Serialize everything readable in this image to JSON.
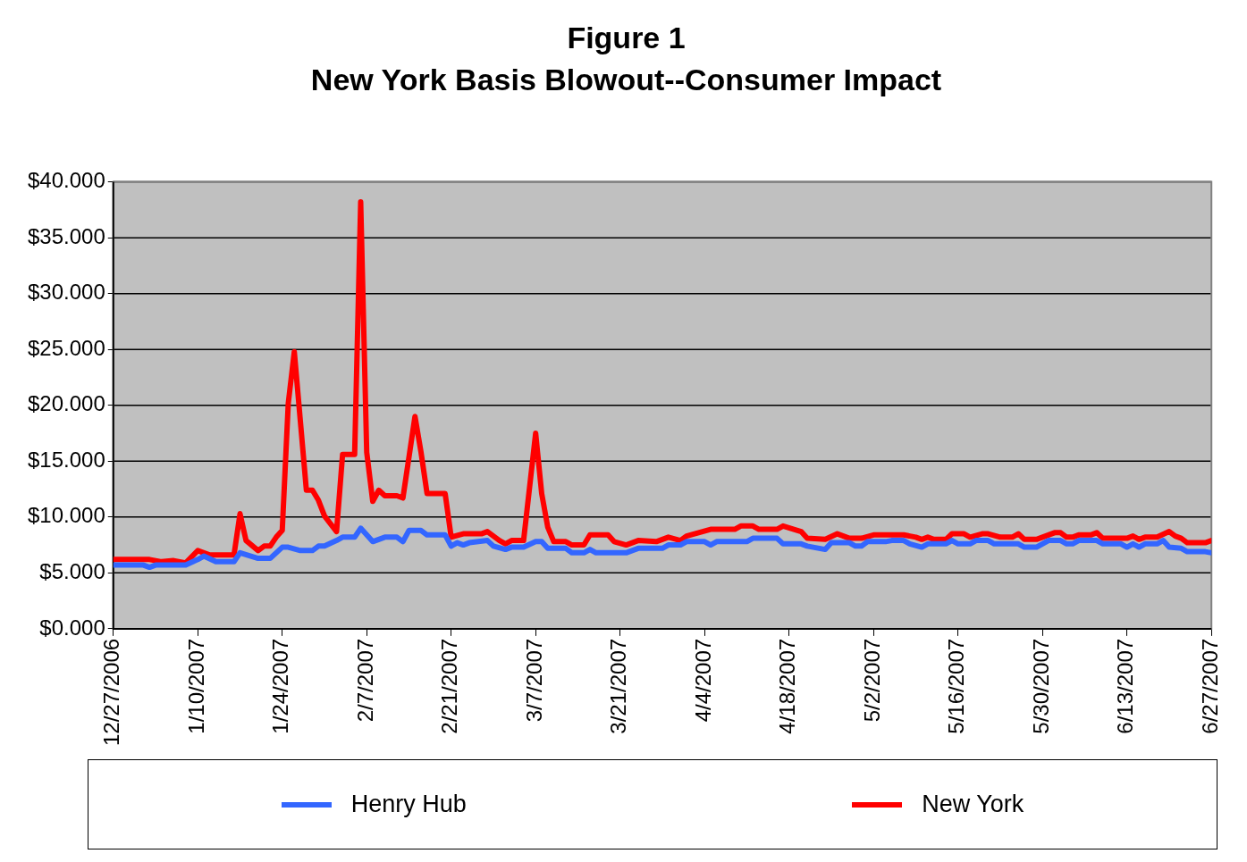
{
  "chart_data": {
    "type": "line",
    "title": "Figure 1",
    "subtitle": "New York Basis Blowout--Consumer Impact",
    "series": [
      {
        "name": "Henry Hub",
        "color": "#3366ff",
        "x": [
          "2006-12-27",
          "2007-01-01",
          "2007-01-02",
          "2007-01-03",
          "2007-01-08",
          "2007-01-10",
          "2007-01-11",
          "2007-01-13",
          "2007-01-16",
          "2007-01-17",
          "2007-01-20",
          "2007-01-22",
          "2007-01-24",
          "2007-01-25",
          "2007-01-27",
          "2007-01-29",
          "2007-01-30",
          "2007-01-31",
          "2007-02-02",
          "2007-02-03",
          "2007-02-05",
          "2007-02-06",
          "2007-02-08",
          "2007-02-10",
          "2007-02-12",
          "2007-02-13",
          "2007-02-14",
          "2007-02-16",
          "2007-02-17",
          "2007-02-20",
          "2007-02-21",
          "2007-02-22",
          "2007-02-23",
          "2007-02-24",
          "2007-02-27",
          "2007-02-28",
          "2007-03-02",
          "2007-03-03",
          "2007-03-05",
          "2007-03-07",
          "2007-03-08",
          "2007-03-09",
          "2007-03-12",
          "2007-03-13",
          "2007-03-15",
          "2007-03-16",
          "2007-03-17",
          "2007-03-22",
          "2007-03-24",
          "2007-03-28",
          "2007-03-29",
          "2007-03-31",
          "2007-04-01",
          "2007-04-04",
          "2007-04-05",
          "2007-04-06",
          "2007-04-11",
          "2007-04-12",
          "2007-04-16",
          "2007-04-17",
          "2007-04-20",
          "2007-04-21",
          "2007-04-24",
          "2007-04-25",
          "2007-04-28",
          "2007-04-29",
          "2007-04-30",
          "2007-05-01",
          "2007-05-04",
          "2007-05-05",
          "2007-05-07",
          "2007-05-08",
          "2007-05-10",
          "2007-05-11",
          "2007-05-14",
          "2007-05-15",
          "2007-05-16",
          "2007-05-18",
          "2007-05-19",
          "2007-05-21",
          "2007-05-22",
          "2007-05-26",
          "2007-05-27",
          "2007-05-29",
          "2007-05-31",
          "2007-06-02",
          "2007-06-03",
          "2007-06-04",
          "2007-06-05",
          "2007-06-08",
          "2007-06-09",
          "2007-06-12",
          "2007-06-13",
          "2007-06-14",
          "2007-06-15",
          "2007-06-16",
          "2007-06-18",
          "2007-06-19",
          "2007-06-20",
          "2007-06-22",
          "2007-06-23",
          "2007-06-26",
          "2007-06-27"
        ],
        "values": [
          5.7,
          5.7,
          5.5,
          5.7,
          5.7,
          6.2,
          6.5,
          6.0,
          6.0,
          6.8,
          6.3,
          6.3,
          7.3,
          7.3,
          7.0,
          7.0,
          7.4,
          7.4,
          7.9,
          8.2,
          8.2,
          9.0,
          7.8,
          8.2,
          8.2,
          7.8,
          8.8,
          8.8,
          8.4,
          8.4,
          7.4,
          7.7,
          7.5,
          7.7,
          7.9,
          7.4,
          7.1,
          7.3,
          7.3,
          7.8,
          7.8,
          7.2,
          7.2,
          6.8,
          6.8,
          7.1,
          6.8,
          6.8,
          7.2,
          7.2,
          7.5,
          7.5,
          7.8,
          7.8,
          7.5,
          7.8,
          7.8,
          8.1,
          8.1,
          7.6,
          7.6,
          7.4,
          7.1,
          7.7,
          7.7,
          7.4,
          7.4,
          7.8,
          7.8,
          7.9,
          7.9,
          7.6,
          7.3,
          7.6,
          7.6,
          7.9,
          7.6,
          7.6,
          7.9,
          7.9,
          7.6,
          7.6,
          7.3,
          7.3,
          7.9,
          7.9,
          7.6,
          7.6,
          7.9,
          7.9,
          7.6,
          7.6,
          7.3,
          7.6,
          7.3,
          7.6,
          7.6,
          7.9,
          7.3,
          7.2,
          6.9,
          6.9,
          6.8
        ]
      },
      {
        "name": "New York",
        "color": "#ff0000",
        "x": [
          "2006-12-27",
          "2007-01-02",
          "2007-01-04",
          "2007-01-06",
          "2007-01-08",
          "2007-01-10",
          "2007-01-12",
          "2007-01-16",
          "2007-01-17",
          "2007-01-18",
          "2007-01-20",
          "2007-01-21",
          "2007-01-22",
          "2007-01-23",
          "2007-01-24",
          "2007-01-25",
          "2007-01-26",
          "2007-01-28",
          "2007-01-29",
          "2007-01-30",
          "2007-01-31",
          "2007-02-02",
          "2007-02-03",
          "2007-02-05",
          "2007-02-06",
          "2007-02-07",
          "2007-02-08",
          "2007-02-09",
          "2007-02-10",
          "2007-02-12",
          "2007-02-13",
          "2007-02-15",
          "2007-02-16",
          "2007-02-17",
          "2007-02-20",
          "2007-02-21",
          "2007-02-23",
          "2007-02-26",
          "2007-02-27",
          "2007-03-01",
          "2007-03-02",
          "2007-03-03",
          "2007-03-05",
          "2007-03-07",
          "2007-03-08",
          "2007-03-09",
          "2007-03-10",
          "2007-03-12",
          "2007-03-13",
          "2007-03-15",
          "2007-03-16",
          "2007-03-19",
          "2007-03-20",
          "2007-03-22",
          "2007-03-24",
          "2007-03-27",
          "2007-03-29",
          "2007-03-31",
          "2007-04-01",
          "2007-04-05",
          "2007-04-09",
          "2007-04-10",
          "2007-04-12",
          "2007-04-13",
          "2007-04-16",
          "2007-04-17",
          "2007-04-20",
          "2007-04-21",
          "2007-04-24",
          "2007-04-26",
          "2007-04-28",
          "2007-04-30",
          "2007-05-02",
          "2007-05-07",
          "2007-05-09",
          "2007-05-10",
          "2007-05-11",
          "2007-05-12",
          "2007-05-14",
          "2007-05-15",
          "2007-05-17",
          "2007-05-18",
          "2007-05-20",
          "2007-05-21",
          "2007-05-23",
          "2007-05-25",
          "2007-05-26",
          "2007-05-27",
          "2007-05-29",
          "2007-06-01",
          "2007-06-02",
          "2007-06-03",
          "2007-06-04",
          "2007-06-05",
          "2007-06-07",
          "2007-06-08",
          "2007-06-09",
          "2007-06-13",
          "2007-06-14",
          "2007-06-15",
          "2007-06-16",
          "2007-06-18",
          "2007-06-20",
          "2007-06-21",
          "2007-06-22",
          "2007-06-23",
          "2007-06-26",
          "2007-06-27"
        ],
        "values": [
          6.2,
          6.2,
          6.0,
          6.1,
          5.9,
          7.0,
          6.6,
          6.6,
          10.3,
          7.9,
          7.0,
          7.4,
          7.4,
          8.2,
          8.8,
          20.2,
          24.8,
          12.4,
          12.4,
          11.5,
          10.1,
          8.7,
          15.6,
          15.6,
          38.2,
          15.8,
          11.4,
          12.4,
          11.9,
          11.9,
          11.7,
          19.0,
          15.8,
          12.1,
          12.1,
          8.2,
          8.5,
          8.5,
          8.7,
          7.9,
          7.6,
          7.9,
          7.9,
          17.5,
          12.1,
          9.1,
          7.8,
          7.8,
          7.5,
          7.5,
          8.4,
          8.4,
          7.8,
          7.5,
          7.9,
          7.8,
          8.2,
          7.9,
          8.3,
          8.9,
          8.9,
          9.2,
          9.2,
          8.9,
          8.9,
          9.2,
          8.7,
          8.1,
          8.0,
          8.5,
          8.1,
          8.1,
          8.4,
          8.4,
          8.2,
          8.0,
          8.2,
          8.0,
          8.0,
          8.5,
          8.5,
          8.2,
          8.5,
          8.5,
          8.2,
          8.2,
          8.5,
          8.0,
          8.0,
          8.6,
          8.6,
          8.2,
          8.2,
          8.4,
          8.4,
          8.6,
          8.1,
          8.1,
          8.3,
          8.0,
          8.2,
          8.2,
          8.7,
          8.3,
          8.1,
          7.7,
          7.7,
          7.9
        ]
      }
    ],
    "xlim": [
      "2006-12-27",
      "2007-06-27"
    ],
    "xticks": [
      {
        "value": "2006-12-27",
        "label": "12/27/2006"
      },
      {
        "value": "2007-01-10",
        "label": "1/10/2007"
      },
      {
        "value": "2007-01-24",
        "label": "1/24/2007"
      },
      {
        "value": "2007-02-07",
        "label": "2/7/2007"
      },
      {
        "value": "2007-02-21",
        "label": "2/21/2007"
      },
      {
        "value": "2007-03-07",
        "label": "3/7/2007"
      },
      {
        "value": "2007-03-21",
        "label": "3/21/2007"
      },
      {
        "value": "2007-04-04",
        "label": "4/4/2007"
      },
      {
        "value": "2007-04-18",
        "label": "4/18/2007"
      },
      {
        "value": "2007-05-02",
        "label": "5/2/2007"
      },
      {
        "value": "2007-05-16",
        "label": "5/16/2007"
      },
      {
        "value": "2007-05-30",
        "label": "5/30/2007"
      },
      {
        "value": "2007-06-13",
        "label": "6/13/2007"
      },
      {
        "value": "2007-06-27",
        "label": "6/27/2007"
      }
    ],
    "ylim": [
      0,
      40
    ],
    "yticks": [
      {
        "value": 0,
        "label": "$0.000"
      },
      {
        "value": 5,
        "label": "$5.000"
      },
      {
        "value": 10,
        "label": "$10.000"
      },
      {
        "value": 15,
        "label": "$15.000"
      },
      {
        "value": 20,
        "label": "$20.000"
      },
      {
        "value": 25,
        "label": "$25.000"
      },
      {
        "value": 30,
        "label": "$30.000"
      },
      {
        "value": 35,
        "label": "$35.000"
      },
      {
        "value": 40,
        "label": "$40.000"
      }
    ],
    "grid": "y",
    "legend": "bottom"
  }
}
